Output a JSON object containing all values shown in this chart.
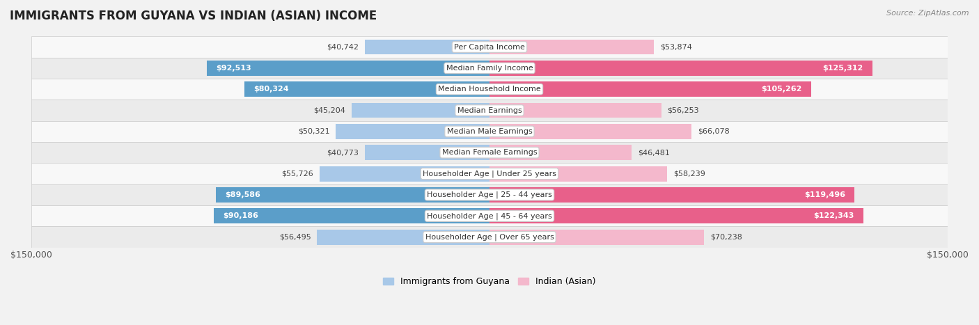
{
  "title": "IMMIGRANTS FROM GUYANA VS INDIAN (ASIAN) INCOME",
  "source": "Source: ZipAtlas.com",
  "categories": [
    "Per Capita Income",
    "Median Family Income",
    "Median Household Income",
    "Median Earnings",
    "Median Male Earnings",
    "Median Female Earnings",
    "Householder Age | Under 25 years",
    "Householder Age | 25 - 44 years",
    "Householder Age | 45 - 64 years",
    "Householder Age | Over 65 years"
  ],
  "guyana_values": [
    40742,
    92513,
    80324,
    45204,
    50321,
    40773,
    55726,
    89586,
    90186,
    56495
  ],
  "indian_values": [
    53874,
    125312,
    105262,
    56253,
    66078,
    46481,
    58239,
    119496,
    122343,
    70238
  ],
  "guyana_labels": [
    "$40,742",
    "$92,513",
    "$80,324",
    "$45,204",
    "$50,321",
    "$40,773",
    "$55,726",
    "$89,586",
    "$90,186",
    "$56,495"
  ],
  "indian_labels": [
    "$53,874",
    "$125,312",
    "$105,262",
    "$56,253",
    "$66,078",
    "$46,481",
    "$58,239",
    "$119,496",
    "$122,343",
    "$70,238"
  ],
  "guyana_color_light": "#A8C8E8",
  "guyana_color_dark": "#5B9EC9",
  "indian_color_light": "#F4B8CC",
  "indian_color_dark": "#E8608A",
  "max_value": 150000,
  "background_color": "#f2f2f2",
  "row_bg_even": "#f8f8f8",
  "row_bg_odd": "#ebebeb",
  "legend_guyana": "Immigrants from Guyana",
  "legend_indian": "Indian (Asian)",
  "xlabel_left": "$150,000",
  "xlabel_right": "$150,000",
  "guyana_inside_threshold": 0.45,
  "indian_inside_threshold": 0.6
}
